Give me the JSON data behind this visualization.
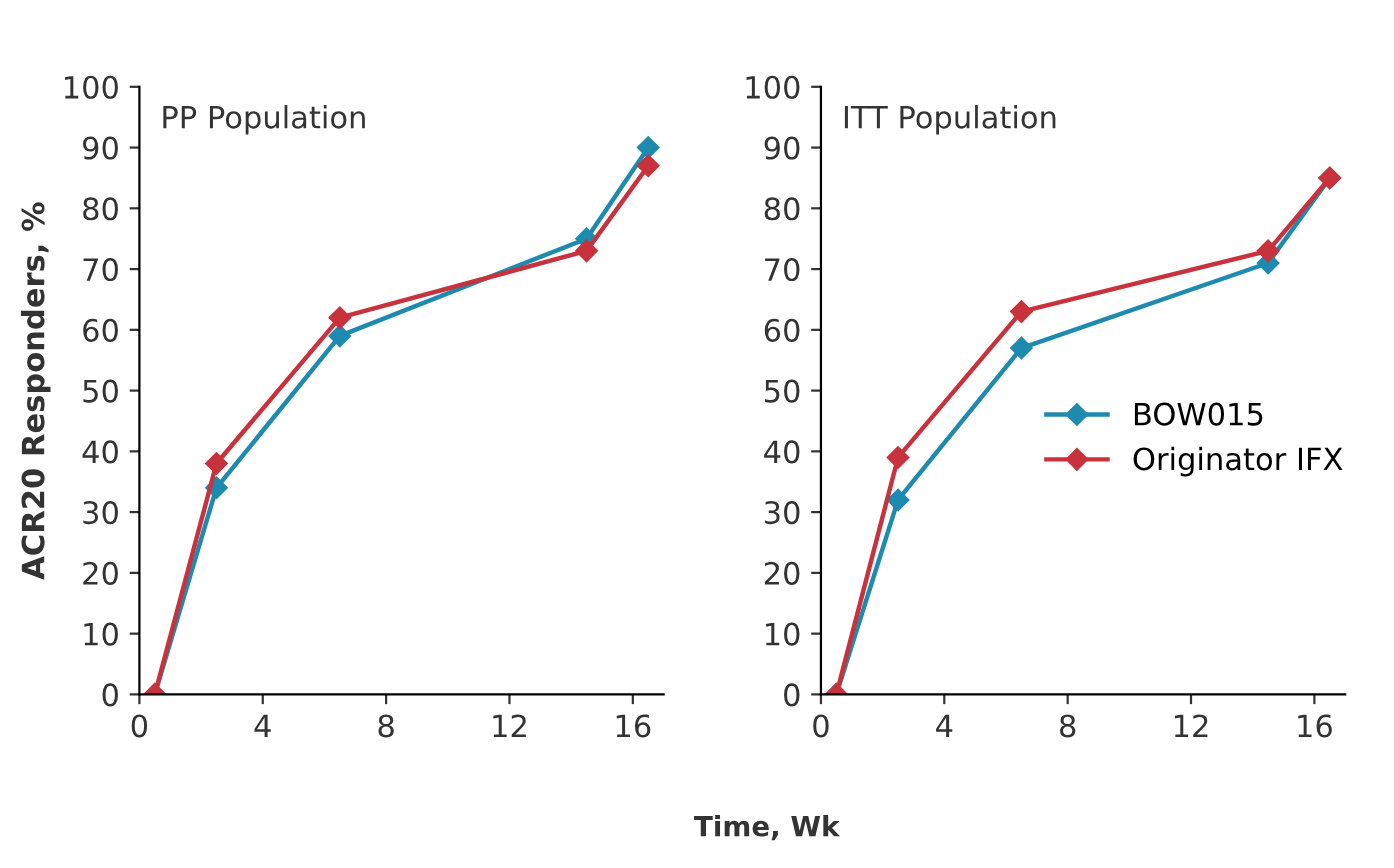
{
  "chart_data": [
    {
      "type": "line",
      "title": "PP Population",
      "ylabel": "ACR20 Responders, %",
      "x": [
        0.5,
        2.5,
        6.5,
        14.5,
        16.5
      ],
      "series": [
        {
          "color": "#1f8ab0",
          "values": [
            0,
            34,
            59,
            75,
            90
          ]
        },
        {
          "color": "#c8323c",
          "values": [
            0,
            38,
            62,
            73,
            87
          ]
        }
      ],
      "xlim": [
        0,
        17
      ],
      "xticks": [
        0,
        4,
        8,
        12,
        16
      ],
      "ylim": [
        0,
        100
      ],
      "yticks": [
        0,
        10,
        20,
        30,
        40,
        50,
        60,
        70,
        80,
        90,
        100
      ],
      "grid": false,
      "legend": false,
      "marker": "diamond"
    },
    {
      "type": "line",
      "title": "ITT Population",
      "xlabel": "Time, Wk",
      "x": [
        0.5,
        2.5,
        6.5,
        14.5,
        16.5
      ],
      "series": [
        {
          "name": "BOW015",
          "color": "#1f8ab0",
          "values": [
            0,
            32,
            57,
            71,
            85
          ]
        },
        {
          "name": "Originator IFX",
          "color": "#c8323c",
          "values": [
            0,
            39,
            63,
            73,
            85
          ]
        }
      ],
      "xlim": [
        0,
        17
      ],
      "xticks": [
        0,
        4,
        8,
        12,
        16
      ],
      "ylim": [
        0,
        100
      ],
      "yticks": [
        0,
        10,
        20,
        30,
        40,
        50,
        60,
        70,
        80,
        90,
        100
      ],
      "grid": false,
      "legend": "right",
      "marker": "diamond"
    }
  ]
}
